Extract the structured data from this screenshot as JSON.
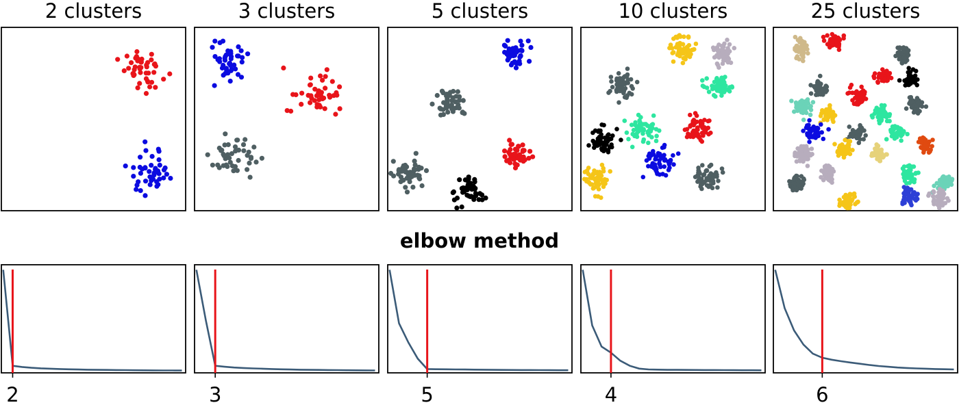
{
  "figure": {
    "middle_title": "elbow method"
  },
  "chart_data": [
    {
      "type": "scatter",
      "title": "2 clusters",
      "xlim": [
        0,
        10
      ],
      "ylim": [
        0,
        10
      ],
      "clusters": [
        {
          "center": [
            7.7,
            7.6
          ],
          "spread": 0.55,
          "count": 45,
          "color": "#e8141a"
        },
        {
          "center": [
            8.1,
            2.1
          ],
          "spread": 0.55,
          "count": 45,
          "color": "#0b0be0"
        }
      ]
    },
    {
      "type": "scatter",
      "title": "3 clusters",
      "xlim": [
        0,
        10
      ],
      "ylim": [
        0,
        10
      ],
      "clusters": [
        {
          "center": [
            1.8,
            8.0
          ],
          "spread": 0.55,
          "count": 45,
          "color": "#0b0be0"
        },
        {
          "center": [
            6.5,
            6.2
          ],
          "spread": 0.6,
          "count": 45,
          "color": "#e8141a"
        },
        {
          "center": [
            2.2,
            3.0
          ],
          "spread": 0.6,
          "count": 45,
          "color": "#4f5f62"
        }
      ]
    },
    {
      "type": "scatter",
      "title": "5 clusters",
      "xlim": [
        0,
        10
      ],
      "ylim": [
        0,
        10
      ],
      "clusters": [
        {
          "center": [
            6.9,
            8.6
          ],
          "spread": 0.35,
          "count": 45,
          "color": "#0b0be0"
        },
        {
          "center": [
            3.4,
            5.8
          ],
          "spread": 0.4,
          "count": 45,
          "color": "#4f5f62"
        },
        {
          "center": [
            6.9,
            3.0
          ],
          "spread": 0.4,
          "count": 45,
          "color": "#e8141a"
        },
        {
          "center": [
            1.2,
            2.0
          ],
          "spread": 0.45,
          "count": 45,
          "color": "#4f5f62"
        },
        {
          "center": [
            4.4,
            1.1
          ],
          "spread": 0.4,
          "count": 45,
          "color": "#000000"
        }
      ]
    },
    {
      "type": "scatter",
      "title": "10 clusters",
      "xlim": [
        0,
        10
      ],
      "ylim": [
        0,
        10
      ],
      "clusters": [
        {
          "center": [
            5.5,
            8.8
          ],
          "spread": 0.35,
          "count": 55,
          "color": "#f5c518"
        },
        {
          "center": [
            7.7,
            8.6
          ],
          "spread": 0.3,
          "count": 55,
          "color": "#b7adbd"
        },
        {
          "center": [
            2.2,
            6.9
          ],
          "spread": 0.35,
          "count": 55,
          "color": "#4f5f62"
        },
        {
          "center": [
            7.6,
            6.8
          ],
          "spread": 0.35,
          "count": 55,
          "color": "#2ee6a0"
        },
        {
          "center": [
            3.5,
            4.6
          ],
          "spread": 0.35,
          "count": 55,
          "color": "#2ee6a0"
        },
        {
          "center": [
            6.4,
            4.5
          ],
          "spread": 0.35,
          "count": 55,
          "color": "#e8141a"
        },
        {
          "center": [
            1.2,
            3.8
          ],
          "spread": 0.35,
          "count": 55,
          "color": "#000000"
        },
        {
          "center": [
            4.3,
            2.7
          ],
          "spread": 0.4,
          "count": 55,
          "color": "#0b0be0"
        },
        {
          "center": [
            0.8,
            1.7
          ],
          "spread": 0.35,
          "count": 55,
          "color": "#f5c518"
        },
        {
          "center": [
            6.8,
            1.8
          ],
          "spread": 0.35,
          "count": 55,
          "color": "#4f5f62"
        }
      ]
    },
    {
      "type": "scatter",
      "title": "25 clusters",
      "xlim": [
        0,
        10
      ],
      "ylim": [
        0,
        10
      ],
      "clusters": [
        {
          "center": [
            1.5,
            8.8
          ],
          "spread": 0.22,
          "count": 45,
          "color": "#cfb98a"
        },
        {
          "center": [
            3.3,
            9.2
          ],
          "spread": 0.22,
          "count": 45,
          "color": "#e8141a"
        },
        {
          "center": [
            7.0,
            8.5
          ],
          "spread": 0.22,
          "count": 45,
          "color": "#4f5f62"
        },
        {
          "center": [
            6.0,
            7.3
          ],
          "spread": 0.22,
          "count": 45,
          "color": "#e8141a"
        },
        {
          "center": [
            7.5,
            7.2
          ],
          "spread": 0.22,
          "count": 45,
          "color": "#000000"
        },
        {
          "center": [
            2.5,
            6.6
          ],
          "spread": 0.22,
          "count": 45,
          "color": "#4f5f62"
        },
        {
          "center": [
            4.6,
            6.2
          ],
          "spread": 0.22,
          "count": 45,
          "color": "#e8141a"
        },
        {
          "center": [
            7.7,
            5.8
          ],
          "spread": 0.22,
          "count": 45,
          "color": "#4f5f62"
        },
        {
          "center": [
            1.6,
            5.6
          ],
          "spread": 0.22,
          "count": 45,
          "color": "#6bd3b8"
        },
        {
          "center": [
            3.0,
            5.3
          ],
          "spread": 0.22,
          "count": 45,
          "color": "#f5c518"
        },
        {
          "center": [
            5.9,
            5.3
          ],
          "spread": 0.22,
          "count": 45,
          "color": "#2ee6a0"
        },
        {
          "center": [
            2.1,
            4.3
          ],
          "spread": 0.22,
          "count": 45,
          "color": "#0b0be0"
        },
        {
          "center": [
            4.5,
            4.2
          ],
          "spread": 0.22,
          "count": 45,
          "color": "#4f5f62"
        },
        {
          "center": [
            6.7,
            4.3
          ],
          "spread": 0.22,
          "count": 45,
          "color": "#2ee6a0"
        },
        {
          "center": [
            8.2,
            3.5
          ],
          "spread": 0.22,
          "count": 45,
          "color": "#e04a10"
        },
        {
          "center": [
            3.8,
            3.4
          ],
          "spread": 0.22,
          "count": 45,
          "color": "#f5c518"
        },
        {
          "center": [
            1.7,
            3.1
          ],
          "spread": 0.22,
          "count": 45,
          "color": "#b7adbd"
        },
        {
          "center": [
            5.7,
            3.1
          ],
          "spread": 0.22,
          "count": 45,
          "color": "#e6d27a"
        },
        {
          "center": [
            7.3,
            2.0
          ],
          "spread": 0.22,
          "count": 45,
          "color": "#2ee6a0"
        },
        {
          "center": [
            3.0,
            2.0
          ],
          "spread": 0.22,
          "count": 45,
          "color": "#b7adbd"
        },
        {
          "center": [
            1.3,
            1.5
          ],
          "spread": 0.22,
          "count": 45,
          "color": "#4f5f62"
        },
        {
          "center": [
            9.2,
            1.5
          ],
          "spread": 0.22,
          "count": 45,
          "color": "#6bd3b8"
        },
        {
          "center": [
            7.4,
            0.8
          ],
          "spread": 0.22,
          "count": 45,
          "color": "#2d3fd6"
        },
        {
          "center": [
            9.0,
            0.7
          ],
          "spread": 0.22,
          "count": 45,
          "color": "#b7adbd"
        },
        {
          "center": [
            4.1,
            0.5
          ],
          "spread": 0.22,
          "count": 45,
          "color": "#f5c518"
        }
      ]
    },
    {
      "type": "line",
      "line_color": "#3b5b78",
      "marker_color": "#e8141a",
      "x": [
        1,
        2,
        3,
        4,
        5,
        6,
        7,
        8,
        9,
        10,
        11,
        12,
        13,
        14,
        15,
        16,
        17,
        18,
        19,
        20
      ],
      "y": [
        100,
        5,
        3.8,
        3,
        2.5,
        2.1,
        1.8,
        1.5,
        1.3,
        1.1,
        1.0,
        0.9,
        0.8,
        0.7,
        0.6,
        0.5,
        0.45,
        0.4,
        0.35,
        0.3
      ],
      "xlim": [
        0.8,
        20.4
      ],
      "ylim": [
        -2,
        105
      ],
      "marker_x": 2,
      "xticks": [
        2
      ],
      "xtick_labels": [
        "2"
      ]
    },
    {
      "type": "line",
      "line_color": "#3b5b78",
      "marker_color": "#e8141a",
      "x": [
        1,
        2,
        3,
        4,
        5,
        6,
        7,
        8,
        9,
        10,
        11,
        12,
        13,
        14,
        15,
        16,
        17,
        18,
        19,
        20
      ],
      "y": [
        100,
        50,
        5,
        4,
        3.3,
        2.8,
        2.4,
        2.1,
        1.8,
        1.5,
        1.3,
        1.1,
        1.0,
        0.9,
        0.8,
        0.7,
        0.6,
        0.5,
        0.45,
        0.4
      ],
      "xlim": [
        0.8,
        20.4
      ],
      "ylim": [
        -2,
        105
      ],
      "marker_x": 3,
      "xticks": [
        3
      ],
      "xtick_labels": [
        "3"
      ]
    },
    {
      "type": "line",
      "line_color": "#3b5b78",
      "marker_color": "#e8141a",
      "x": [
        1,
        2,
        3,
        4,
        5,
        6,
        7,
        8,
        9,
        10,
        11,
        12,
        13,
        14,
        15,
        16,
        17,
        18,
        19,
        20
      ],
      "y": [
        100,
        47,
        28,
        12,
        1.8,
        1.6,
        1.5,
        1.4,
        1.3,
        1.2,
        1.1,
        1.0,
        0.9,
        0.85,
        0.8,
        0.75,
        0.7,
        0.65,
        0.6,
        0.55
      ],
      "xlim": [
        0.8,
        20.4
      ],
      "ylim": [
        -2,
        105
      ],
      "marker_x": 5,
      "xticks": [
        5
      ],
      "xtick_labels": [
        "5"
      ]
    },
    {
      "type": "line",
      "line_color": "#3b5b78",
      "marker_color": "#e8141a",
      "x": [
        1,
        2,
        3,
        4,
        5,
        6,
        7,
        8,
        9,
        10,
        11,
        12,
        13,
        14,
        15,
        16,
        17,
        18,
        19,
        20
      ],
      "y": [
        100,
        45,
        24,
        18,
        10,
        5,
        2.2,
        1.4,
        1.2,
        1.0,
        0.95,
        0.9,
        0.85,
        0.8,
        0.75,
        0.7,
        0.65,
        0.6,
        0.55,
        0.5
      ],
      "xlim": [
        0.8,
        20.4
      ],
      "ylim": [
        -2,
        105
      ],
      "marker_x": 4,
      "xticks": [
        4
      ],
      "xtick_labels": [
        "4"
      ]
    },
    {
      "type": "line",
      "line_color": "#3b5b78",
      "marker_color": "#e8141a",
      "x": [
        1,
        2,
        3,
        4,
        5,
        6,
        7,
        8,
        9,
        10,
        11,
        12,
        13,
        14,
        15,
        16,
        17,
        18,
        19,
        20
      ],
      "y": [
        100,
        62,
        40,
        26,
        17,
        13,
        11,
        9.5,
        8.2,
        7,
        5.8,
        4.8,
        4,
        3.3,
        2.8,
        2.4,
        2.1,
        1.8,
        1.6,
        1.4
      ],
      "xlim": [
        0.8,
        20.4
      ],
      "ylim": [
        -2,
        105
      ],
      "marker_x": 6,
      "xticks": [
        6
      ],
      "xtick_labels": [
        "6"
      ]
    }
  ]
}
